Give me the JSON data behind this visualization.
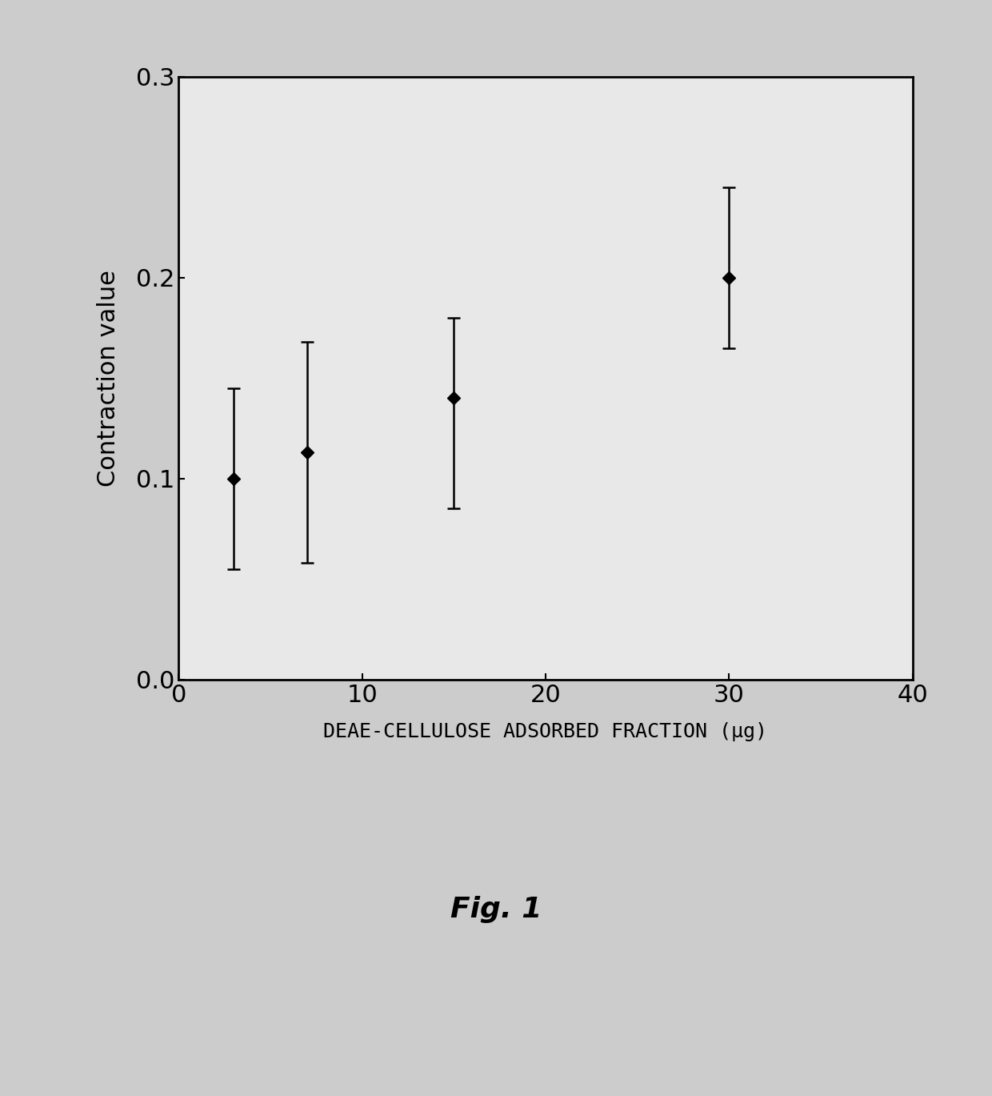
{
  "x": [
    3,
    7,
    15,
    30
  ],
  "y": [
    0.1,
    0.113,
    0.14,
    0.2
  ],
  "yerr_upper": [
    0.045,
    0.055,
    0.04,
    0.045
  ],
  "yerr_lower": [
    0.045,
    0.055,
    0.055,
    0.035
  ],
  "xlim": [
    0,
    40
  ],
  "ylim": [
    0.0,
    0.3
  ],
  "xticks": [
    0,
    10,
    20,
    30,
    40
  ],
  "yticks": [
    0.0,
    0.1,
    0.2,
    0.3
  ],
  "xlabel": "DEAE-CELLULOSE ADSORBED FRACTION (μg)",
  "ylabel": "Contraction value",
  "fig_label": "Fig. 1",
  "background_color": "#cccccc",
  "plot_bg_color": "#e8e8e8",
  "line_color": "#000000",
  "marker_color": "#000000",
  "marker_style": "D",
  "marker_size": 8,
  "line_width": 2.0
}
